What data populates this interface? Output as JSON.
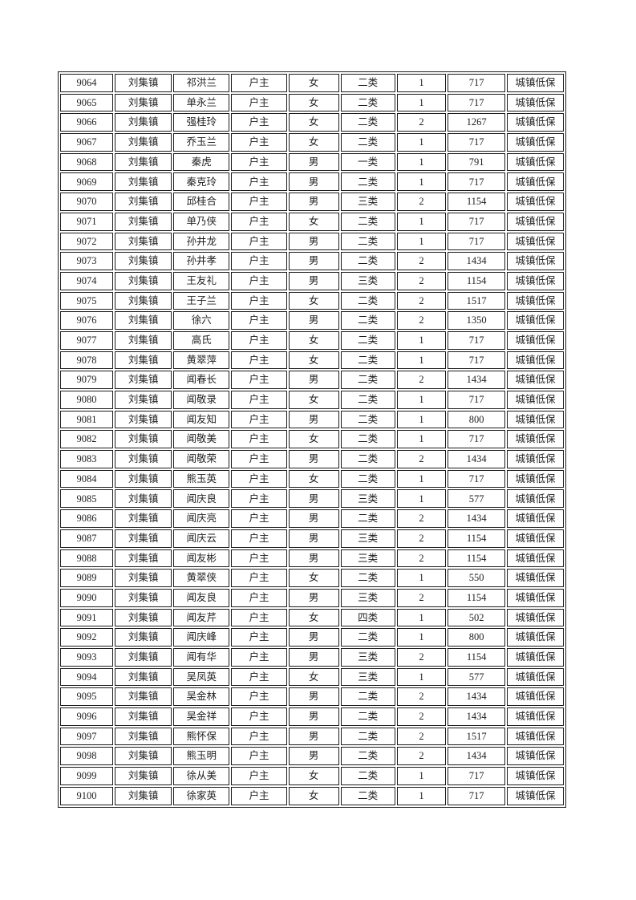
{
  "document": {
    "kind": "scanned-table-page",
    "background_color": "#ffffff",
    "border_color": "#1c1c1c",
    "text_color": "#1f1f1f"
  },
  "table": {
    "column_keys": [
      "serial",
      "town",
      "name",
      "relation",
      "gender",
      "category",
      "count",
      "amount",
      "type"
    ],
    "column_widths_percent": [
      10.8,
      11.6,
      11.5,
      11.3,
      10.3,
      11.1,
      10.1,
      11.7,
      11.6
    ],
    "rows": [
      [
        "9064",
        "刘集镇",
        "祁洪兰",
        "户主",
        "女",
        "二类",
        "1",
        "717",
        "城镇低保"
      ],
      [
        "9065",
        "刘集镇",
        "单永兰",
        "户主",
        "女",
        "二类",
        "1",
        "717",
        "城镇低保"
      ],
      [
        "9066",
        "刘集镇",
        "强桂玲",
        "户主",
        "女",
        "二类",
        "2",
        "1267",
        "城镇低保"
      ],
      [
        "9067",
        "刘集镇",
        "乔玉兰",
        "户主",
        "女",
        "二类",
        "1",
        "717",
        "城镇低保"
      ],
      [
        "9068",
        "刘集镇",
        "秦虎",
        "户主",
        "男",
        "一类",
        "1",
        "791",
        "城镇低保"
      ],
      [
        "9069",
        "刘集镇",
        "秦克玲",
        "户主",
        "男",
        "二类",
        "1",
        "717",
        "城镇低保"
      ],
      [
        "9070",
        "刘集镇",
        "邱桂合",
        "户主",
        "男",
        "三类",
        "2",
        "1154",
        "城镇低保"
      ],
      [
        "9071",
        "刘集镇",
        "单乃侠",
        "户主",
        "女",
        "二类",
        "1",
        "717",
        "城镇低保"
      ],
      [
        "9072",
        "刘集镇",
        "孙井龙",
        "户主",
        "男",
        "二类",
        "1",
        "717",
        "城镇低保"
      ],
      [
        "9073",
        "刘集镇",
        "孙井孝",
        "户主",
        "男",
        "二类",
        "2",
        "1434",
        "城镇低保"
      ],
      [
        "9074",
        "刘集镇",
        "王友礼",
        "户主",
        "男",
        "三类",
        "2",
        "1154",
        "城镇低保"
      ],
      [
        "9075",
        "刘集镇",
        "王子兰",
        "户主",
        "女",
        "二类",
        "2",
        "1517",
        "城镇低保"
      ],
      [
        "9076",
        "刘集镇",
        "徐六",
        "户主",
        "男",
        "二类",
        "2",
        "1350",
        "城镇低保"
      ],
      [
        "9077",
        "刘集镇",
        "高氏",
        "户主",
        "女",
        "二类",
        "1",
        "717",
        "城镇低保"
      ],
      [
        "9078",
        "刘集镇",
        "黄翠萍",
        "户主",
        "女",
        "二类",
        "1",
        "717",
        "城镇低保"
      ],
      [
        "9079",
        "刘集镇",
        "闻春长",
        "户主",
        "男",
        "二类",
        "2",
        "1434",
        "城镇低保"
      ],
      [
        "9080",
        "刘集镇",
        "闻敬录",
        "户主",
        "女",
        "二类",
        "1",
        "717",
        "城镇低保"
      ],
      [
        "9081",
        "刘集镇",
        "闻友知",
        "户主",
        "男",
        "二类",
        "1",
        "800",
        "城镇低保"
      ],
      [
        "9082",
        "刘集镇",
        "闻敬美",
        "户主",
        "女",
        "二类",
        "1",
        "717",
        "城镇低保"
      ],
      [
        "9083",
        "刘集镇",
        "闻敬荣",
        "户主",
        "男",
        "二类",
        "2",
        "1434",
        "城镇低保"
      ],
      [
        "9084",
        "刘集镇",
        "熊玉英",
        "户主",
        "女",
        "二类",
        "1",
        "717",
        "城镇低保"
      ],
      [
        "9085",
        "刘集镇",
        "闻庆良",
        "户主",
        "男",
        "三类",
        "1",
        "577",
        "城镇低保"
      ],
      [
        "9086",
        "刘集镇",
        "闻庆亮",
        "户主",
        "男",
        "二类",
        "2",
        "1434",
        "城镇低保"
      ],
      [
        "9087",
        "刘集镇",
        "闻庆云",
        "户主",
        "男",
        "三类",
        "2",
        "1154",
        "城镇低保"
      ],
      [
        "9088",
        "刘集镇",
        "闻友彬",
        "户主",
        "男",
        "三类",
        "2",
        "1154",
        "城镇低保"
      ],
      [
        "9089",
        "刘集镇",
        "黄翠侠",
        "户主",
        "女",
        "二类",
        "1",
        "550",
        "城镇低保"
      ],
      [
        "9090",
        "刘集镇",
        "闻友良",
        "户主",
        "男",
        "三类",
        "2",
        "1154",
        "城镇低保"
      ],
      [
        "9091",
        "刘集镇",
        "闻友芹",
        "户主",
        "女",
        "四类",
        "1",
        "502",
        "城镇低保"
      ],
      [
        "9092",
        "刘集镇",
        "闻庆峰",
        "户主",
        "男",
        "二类",
        "1",
        "800",
        "城镇低保"
      ],
      [
        "9093",
        "刘集镇",
        "闻有华",
        "户主",
        "男",
        "三类",
        "2",
        "1154",
        "城镇低保"
      ],
      [
        "9094",
        "刘集镇",
        "吴凤英",
        "户主",
        "女",
        "三类",
        "1",
        "577",
        "城镇低保"
      ],
      [
        "9095",
        "刘集镇",
        "吴金林",
        "户主",
        "男",
        "二类",
        "2",
        "1434",
        "城镇低保"
      ],
      [
        "9096",
        "刘集镇",
        "吴金祥",
        "户主",
        "男",
        "二类",
        "2",
        "1434",
        "城镇低保"
      ],
      [
        "9097",
        "刘集镇",
        "熊怀保",
        "户主",
        "男",
        "二类",
        "2",
        "1517",
        "城镇低保"
      ],
      [
        "9098",
        "刘集镇",
        "熊玉明",
        "户主",
        "男",
        "二类",
        "2",
        "1434",
        "城镇低保"
      ],
      [
        "9099",
        "刘集镇",
        "徐从美",
        "户主",
        "女",
        "二类",
        "1",
        "717",
        "城镇低保"
      ],
      [
        "9100",
        "刘集镇",
        "徐家英",
        "户主",
        "女",
        "二类",
        "1",
        "717",
        "城镇低保"
      ]
    ]
  }
}
